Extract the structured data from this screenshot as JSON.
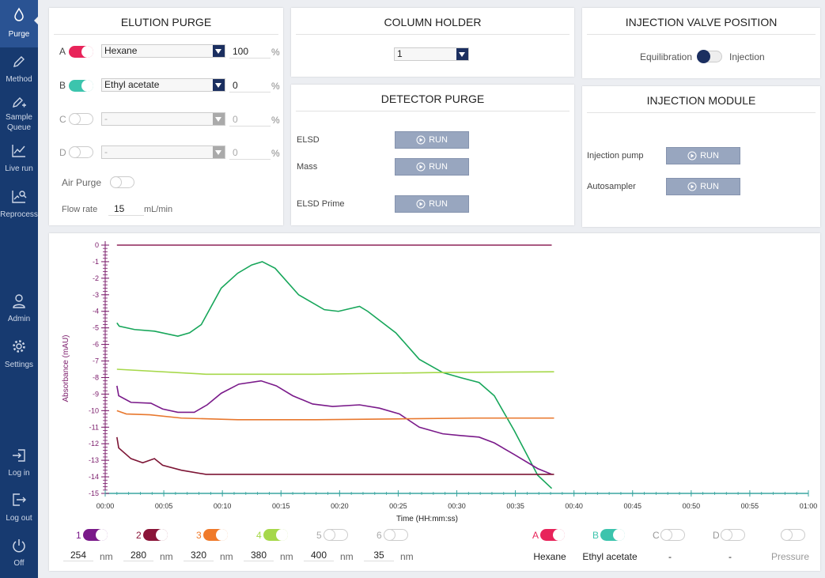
{
  "sidebar": {
    "items": [
      {
        "label": "Purge"
      },
      {
        "label": "Method"
      },
      {
        "label": "Sample Queue"
      },
      {
        "label": "Live run"
      },
      {
        "label": "Reprocess"
      },
      {
        "label": "Admin"
      },
      {
        "label": "Settings"
      },
      {
        "label": "Log in"
      },
      {
        "label": "Log out"
      },
      {
        "label": "Off"
      }
    ]
  },
  "elution_purge": {
    "title": "ELUTION PURGE",
    "rows": [
      {
        "letter": "A",
        "solvent": "Hexane",
        "value": 100,
        "unit": "%"
      },
      {
        "letter": "B",
        "solvent": "Ethyl acetate",
        "value": 0,
        "unit": "%"
      },
      {
        "letter": "C",
        "solvent": "-",
        "value": 0,
        "unit": "%"
      },
      {
        "letter": "D",
        "solvent": "-",
        "value": 0,
        "unit": "%"
      }
    ],
    "air_purge": "Air Purge",
    "flow_rate": {
      "label": "Flow rate",
      "value": 15,
      "unit": "mL/min"
    }
  },
  "column_holder": {
    "title": "COLUMN HOLDER",
    "value": 1
  },
  "detector_purge": {
    "title": "DETECTOR PURGE",
    "rows": [
      {
        "label": "ELSD",
        "button": "RUN"
      },
      {
        "label": "Mass",
        "button": "RUN"
      },
      {
        "label": "ELSD Prime",
        "button": "RUN"
      }
    ]
  },
  "injection_valve": {
    "title": "INJECTION VALVE POSITION",
    "left": "Equilibration",
    "right": "Injection"
  },
  "injection_module": {
    "title": "INJECTION MODULE",
    "rows": [
      {
        "label": "Injection pump",
        "button": "RUN"
      },
      {
        "label": "Autosampler",
        "button": "RUN"
      }
    ]
  },
  "chart": {
    "type": "line",
    "x_label": "Time (HH:mm:ss)",
    "y_label": "Absorbance (mAU)",
    "xlim": [
      0,
      60
    ],
    "ylim": [
      -15,
      0
    ],
    "xticks": [
      {
        "value": 0,
        "label": "00:00"
      },
      {
        "value": 5,
        "label": "00:05"
      },
      {
        "value": 10,
        "label": "00:10"
      },
      {
        "value": 15,
        "label": "00:15"
      },
      {
        "value": 20,
        "label": "00:20"
      },
      {
        "value": 25,
        "label": "00:25"
      },
      {
        "value": 30,
        "label": "00:30"
      },
      {
        "value": 35,
        "label": "00:35"
      },
      {
        "value": 40,
        "label": "00:40"
      },
      {
        "value": 45,
        "label": "00:45"
      },
      {
        "value": 50,
        "label": "00:50"
      },
      {
        "value": 55,
        "label": "00:55"
      },
      {
        "value": 60,
        "label": "01:00"
      }
    ],
    "yticks": [
      0,
      -1,
      -2,
      -3,
      -4,
      -5,
      -6,
      -7,
      -8,
      -9,
      -10,
      -11,
      -12,
      -13,
      -14,
      -15
    ],
    "series": [
      {
        "color": "#8e2458",
        "x": [
          1.0,
          38.1
        ],
        "values": [
          0,
          0
        ]
      },
      {
        "color": "#17a65a",
        "x": [
          1.0,
          1.2,
          2.5,
          4.2,
          6.2,
          7.2,
          8.2,
          9.9,
          11.3,
          12.5,
          13.4,
          14.5,
          16.5,
          18.7,
          19.9,
          21.7,
          22.4,
          24.8,
          26.8,
          28.8,
          30.3,
          31.9,
          33.2,
          34.9,
          36.9,
          38.1
        ],
        "values": [
          -4.7,
          -4.9,
          -5.1,
          -5.2,
          -5.5,
          -5.3,
          -4.8,
          -2.6,
          -1.7,
          -1.2,
          -1.0,
          -1.4,
          -3.0,
          -3.9,
          -4.0,
          -3.7,
          -4.0,
          -5.3,
          -6.9,
          -7.7,
          -8.0,
          -8.3,
          -9.1,
          -11.2,
          -13.9,
          -14.7
        ]
      },
      {
        "color": "#a6d84a",
        "x": [
          1.0,
          8.6,
          18.0,
          28.1,
          38.3
        ],
        "values": [
          -7.5,
          -7.8,
          -7.8,
          -7.7,
          -7.65
        ]
      },
      {
        "color": "#7a1a8a",
        "x": [
          1.0,
          1.15,
          2.2,
          3.9,
          4.9,
          6.2,
          7.6,
          8.7,
          9.9,
          11.4,
          13.3,
          14.6,
          16.0,
          17.7,
          19.4,
          21.7,
          23.4,
          25.1,
          26.8,
          28.8,
          30.2,
          31.9,
          33.2,
          34.9,
          36.9,
          38.1
        ],
        "values": [
          -8.5,
          -9.1,
          -9.5,
          -9.55,
          -9.9,
          -10.1,
          -10.1,
          -9.65,
          -8.95,
          -8.4,
          -8.2,
          -8.5,
          -9.1,
          -9.6,
          -9.75,
          -9.65,
          -9.85,
          -10.2,
          -11.0,
          -11.4,
          -11.5,
          -11.6,
          -11.95,
          -12.65,
          -13.5,
          -13.85
        ]
      },
      {
        "color": "#e8782e",
        "x": [
          1.0,
          1.8,
          3.8,
          6.5,
          11.3,
          18.0,
          24.8,
          31.5,
          38.3
        ],
        "values": [
          -10.0,
          -10.2,
          -10.25,
          -10.45,
          -10.55,
          -10.55,
          -10.5,
          -10.45,
          -10.45
        ]
      },
      {
        "color": "#7d1535",
        "x": [
          1.0,
          1.15,
          2.2,
          3.2,
          4.2,
          4.9,
          6.5,
          8.6,
          18.0,
          28.1,
          38.3
        ],
        "values": [
          -11.6,
          -12.25,
          -12.9,
          -13.15,
          -12.9,
          -13.3,
          -13.6,
          -13.85,
          -13.85,
          -13.85,
          -13.85
        ]
      }
    ]
  },
  "legend": {
    "channels": [
      {
        "id": "1",
        "wavelength": 254,
        "unit": "nm",
        "color": "#7a1a8a",
        "on": true
      },
      {
        "id": "2",
        "wavelength": 280,
        "unit": "nm",
        "color": "#8a1538",
        "on": true
      },
      {
        "id": "3",
        "wavelength": 320,
        "unit": "nm",
        "color": "#f07a2a",
        "on": true
      },
      {
        "id": "4",
        "wavelength": 380,
        "unit": "nm",
        "color": "#a6d84a",
        "on": true
      },
      {
        "id": "5",
        "wavelength": 400,
        "unit": "nm",
        "color": "#aaaaaa",
        "on": false
      },
      {
        "id": "6",
        "wavelength": 35,
        "unit": "nm",
        "color": "#aaaaaa",
        "on": false
      }
    ],
    "pumps": [
      {
        "letter": "A",
        "solvent": "Hexane"
      },
      {
        "letter": "B",
        "solvent": "Ethyl acetate"
      },
      {
        "letter": "C",
        "solvent": "-"
      },
      {
        "letter": "D",
        "solvent": "-"
      }
    ],
    "pressure": "Pressure"
  }
}
